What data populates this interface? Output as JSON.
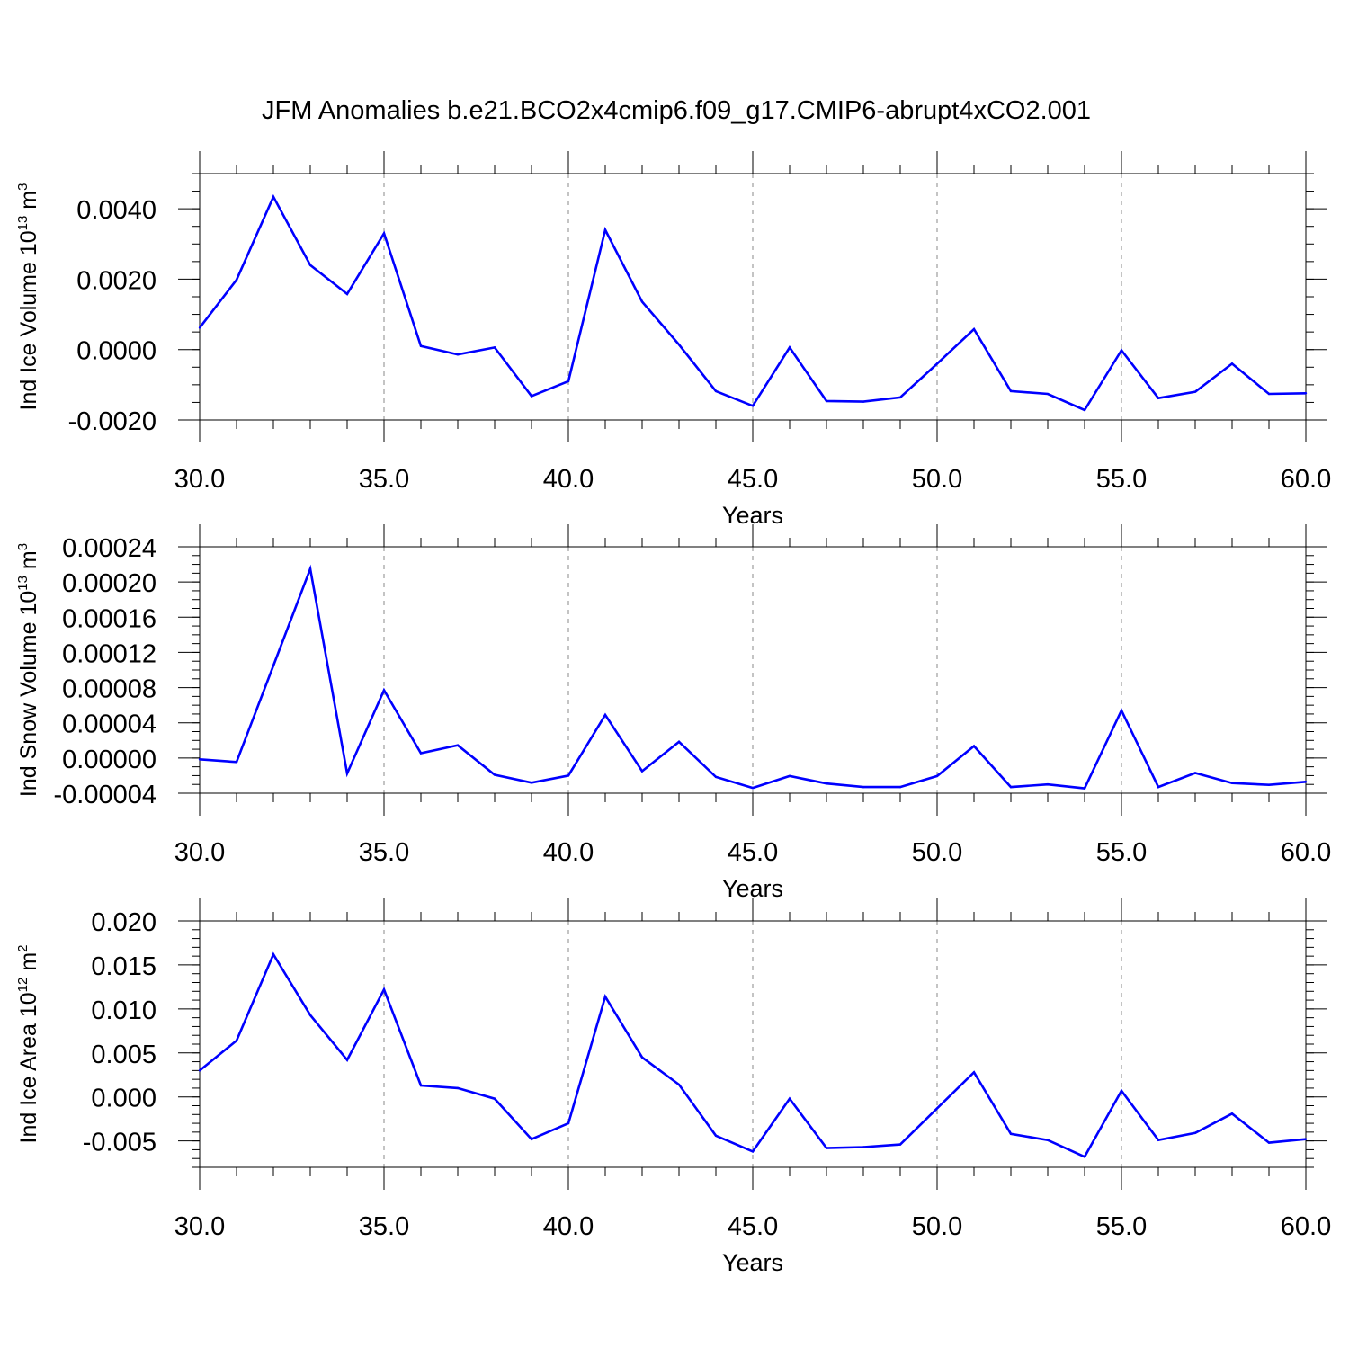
{
  "title": "JFM Anomalies b.e21.BCO2x4cmip6.f09_g17.CMIP6-abrupt4xCO2.001",
  "chart_data": [
    {
      "type": "line",
      "xlabel": "Years",
      "ylabel": {
        "main": "Ind Ice Volume 10",
        "exp": "13",
        "unit": " m",
        "unit_exp": "3"
      },
      "xlim": [
        30,
        60
      ],
      "ylim": [
        -0.002,
        0.005
      ],
      "yticks": [
        -0.002,
        0.0,
        0.002,
        0.004
      ],
      "ytick_labels": [
        "-0.0020",
        "0.0000",
        "0.0020",
        "0.0040"
      ],
      "yminor_step": 0.0005,
      "xticks": [
        30,
        35,
        40,
        45,
        50,
        55,
        60
      ],
      "xtick_labels": [
        "30.0",
        "35.0",
        "40.0",
        "45.0",
        "50.0",
        "55.0",
        "60.0"
      ],
      "grid": "dashed vertical at major x ticks",
      "color": "#0000ff",
      "x": [
        30,
        31,
        32,
        33,
        34,
        35,
        36,
        37,
        38,
        39,
        40,
        41,
        42,
        43,
        44,
        45,
        46,
        47,
        48,
        49,
        50,
        51,
        52,
        53,
        54,
        55,
        56,
        57,
        58,
        59,
        60
      ],
      "y": [
        0.00062,
        0.00198,
        0.00434,
        0.0024,
        0.00158,
        0.0033,
        0.0001,
        -0.00014,
        6e-05,
        -0.00132,
        -0.0009,
        0.0034,
        0.00136,
        0.00014,
        -0.00118,
        -0.0016,
        6e-05,
        -0.00146,
        -0.00148,
        -0.00136,
        -0.0004,
        0.00058,
        -0.00118,
        -0.00126,
        -0.00172,
        -2e-05,
        -0.00138,
        -0.0012,
        -0.0004,
        -0.00126,
        -0.00124
      ]
    },
    {
      "type": "line",
      "xlabel": "Years",
      "ylabel": {
        "main": "Ind Snow Volume 10",
        "exp": "13",
        "unit": " m",
        "unit_exp": "3"
      },
      "xlim": [
        30,
        60
      ],
      "ylim": [
        -4e-05,
        0.00024
      ],
      "yticks": [
        -4e-05,
        0.0,
        4e-05,
        8e-05,
        0.00012,
        0.00016,
        0.0002,
        0.00024
      ],
      "ytick_labels": [
        "-0.00004",
        "0.00000",
        "0.00004",
        "0.00008",
        "0.00012",
        "0.00016",
        "0.00020",
        "0.00024"
      ],
      "yminor_step": 1e-05,
      "xticks": [
        30,
        35,
        40,
        45,
        50,
        55,
        60
      ],
      "xtick_labels": [
        "30.0",
        "35.0",
        "40.0",
        "45.0",
        "50.0",
        "55.0",
        "60.0"
      ],
      "grid": "dashed vertical at major x ticks",
      "color": "#0000ff",
      "x": [
        30,
        31,
        32,
        33,
        34,
        35,
        36,
        37,
        38,
        39,
        40,
        41,
        42,
        43,
        44,
        45,
        46,
        47,
        48,
        49,
        50,
        51,
        52,
        53,
        54,
        55,
        56,
        57,
        58,
        59,
        60
      ],
      "y": [
        -1.5e-06,
        -4.5e-06,
        0.000105,
        0.000215,
        -1.75e-05,
        7.7e-05,
        5.5e-06,
        1.45e-05,
        -1.9e-05,
        -2.8e-05,
        -2e-05,
        4.9e-05,
        -1.5e-05,
        1.85e-05,
        -2.15e-05,
        -3.4e-05,
        -2.05e-05,
        -2.9e-05,
        -3.3e-05,
        -3.3e-05,
        -2.05e-05,
        1.35e-05,
        -3.3e-05,
        -3e-05,
        -3.45e-05,
        5.4e-05,
        -3.3e-05,
        -1.7e-05,
        -2.85e-05,
        -3.05e-05,
        -2.7e-05
      ]
    },
    {
      "type": "line",
      "xlabel": "Years",
      "ylabel": {
        "main": "Ind Ice Area 10",
        "exp": "12",
        "unit": " m",
        "unit_exp": "2"
      },
      "xlim": [
        30,
        60
      ],
      "ylim": [
        -0.008,
        0.02
      ],
      "yticks": [
        -0.005,
        0.0,
        0.005,
        0.01,
        0.015,
        0.02
      ],
      "ytick_labels": [
        "-0.005",
        "0.000",
        "0.005",
        "0.010",
        "0.015",
        "0.020"
      ],
      "yminor_step": 0.001,
      "xticks": [
        30,
        35,
        40,
        45,
        50,
        55,
        60
      ],
      "xtick_labels": [
        "30.0",
        "35.0",
        "40.0",
        "45.0",
        "50.0",
        "55.0",
        "60.0"
      ],
      "grid": "dashed vertical at major x ticks",
      "color": "#0000ff",
      "x": [
        30,
        31,
        32,
        33,
        34,
        35,
        36,
        37,
        38,
        39,
        40,
        41,
        42,
        43,
        44,
        45,
        46,
        47,
        48,
        49,
        50,
        51,
        52,
        53,
        54,
        55,
        56,
        57,
        58,
        59,
        60
      ],
      "y": [
        0.003,
        0.0064,
        0.0162,
        0.0093,
        0.0042,
        0.0122,
        0.0013,
        0.001,
        -0.0002,
        -0.0048,
        -0.003,
        0.0114,
        0.0045,
        0.0014,
        -0.0044,
        -0.0062,
        -0.0002,
        -0.0058,
        -0.0057,
        -0.0054,
        -0.0013,
        0.0028,
        -0.0042,
        -0.0049,
        -0.0068,
        0.0007,
        -0.0049,
        -0.0041,
        -0.0019,
        -0.0052,
        -0.0048
      ]
    }
  ]
}
